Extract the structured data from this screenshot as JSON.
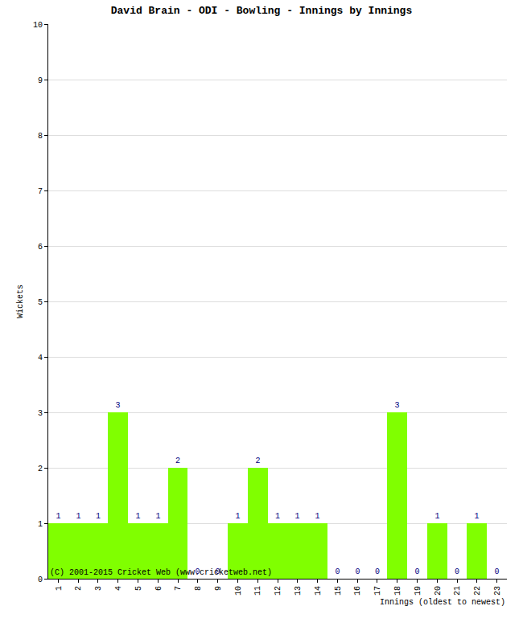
{
  "chart_data": {
    "type": "bar",
    "title": "David Brain - ODI - Bowling - Innings by Innings",
    "xlabel": "Innings (oldest to newest)",
    "ylabel": "Wickets",
    "categories": [
      "1",
      "2",
      "3",
      "4",
      "5",
      "6",
      "7",
      "8",
      "9",
      "10",
      "11",
      "12",
      "13",
      "14",
      "15",
      "16",
      "17",
      "18",
      "19",
      "20",
      "21",
      "22",
      "23"
    ],
    "values": [
      1,
      1,
      1,
      3,
      1,
      1,
      2,
      0,
      0,
      1,
      2,
      1,
      1,
      1,
      0,
      0,
      0,
      3,
      0,
      1,
      0,
      1,
      0
    ],
    "color": "#80ff00",
    "ylim": [
      0,
      10
    ],
    "yticks": [
      0,
      1,
      2,
      3,
      4,
      5,
      6,
      7,
      8,
      9,
      10
    ],
    "grid": true,
    "data_labels": true,
    "annotations": [
      "(C) 2001-2015 Cricket Web (www.cricketweb.net)"
    ]
  }
}
